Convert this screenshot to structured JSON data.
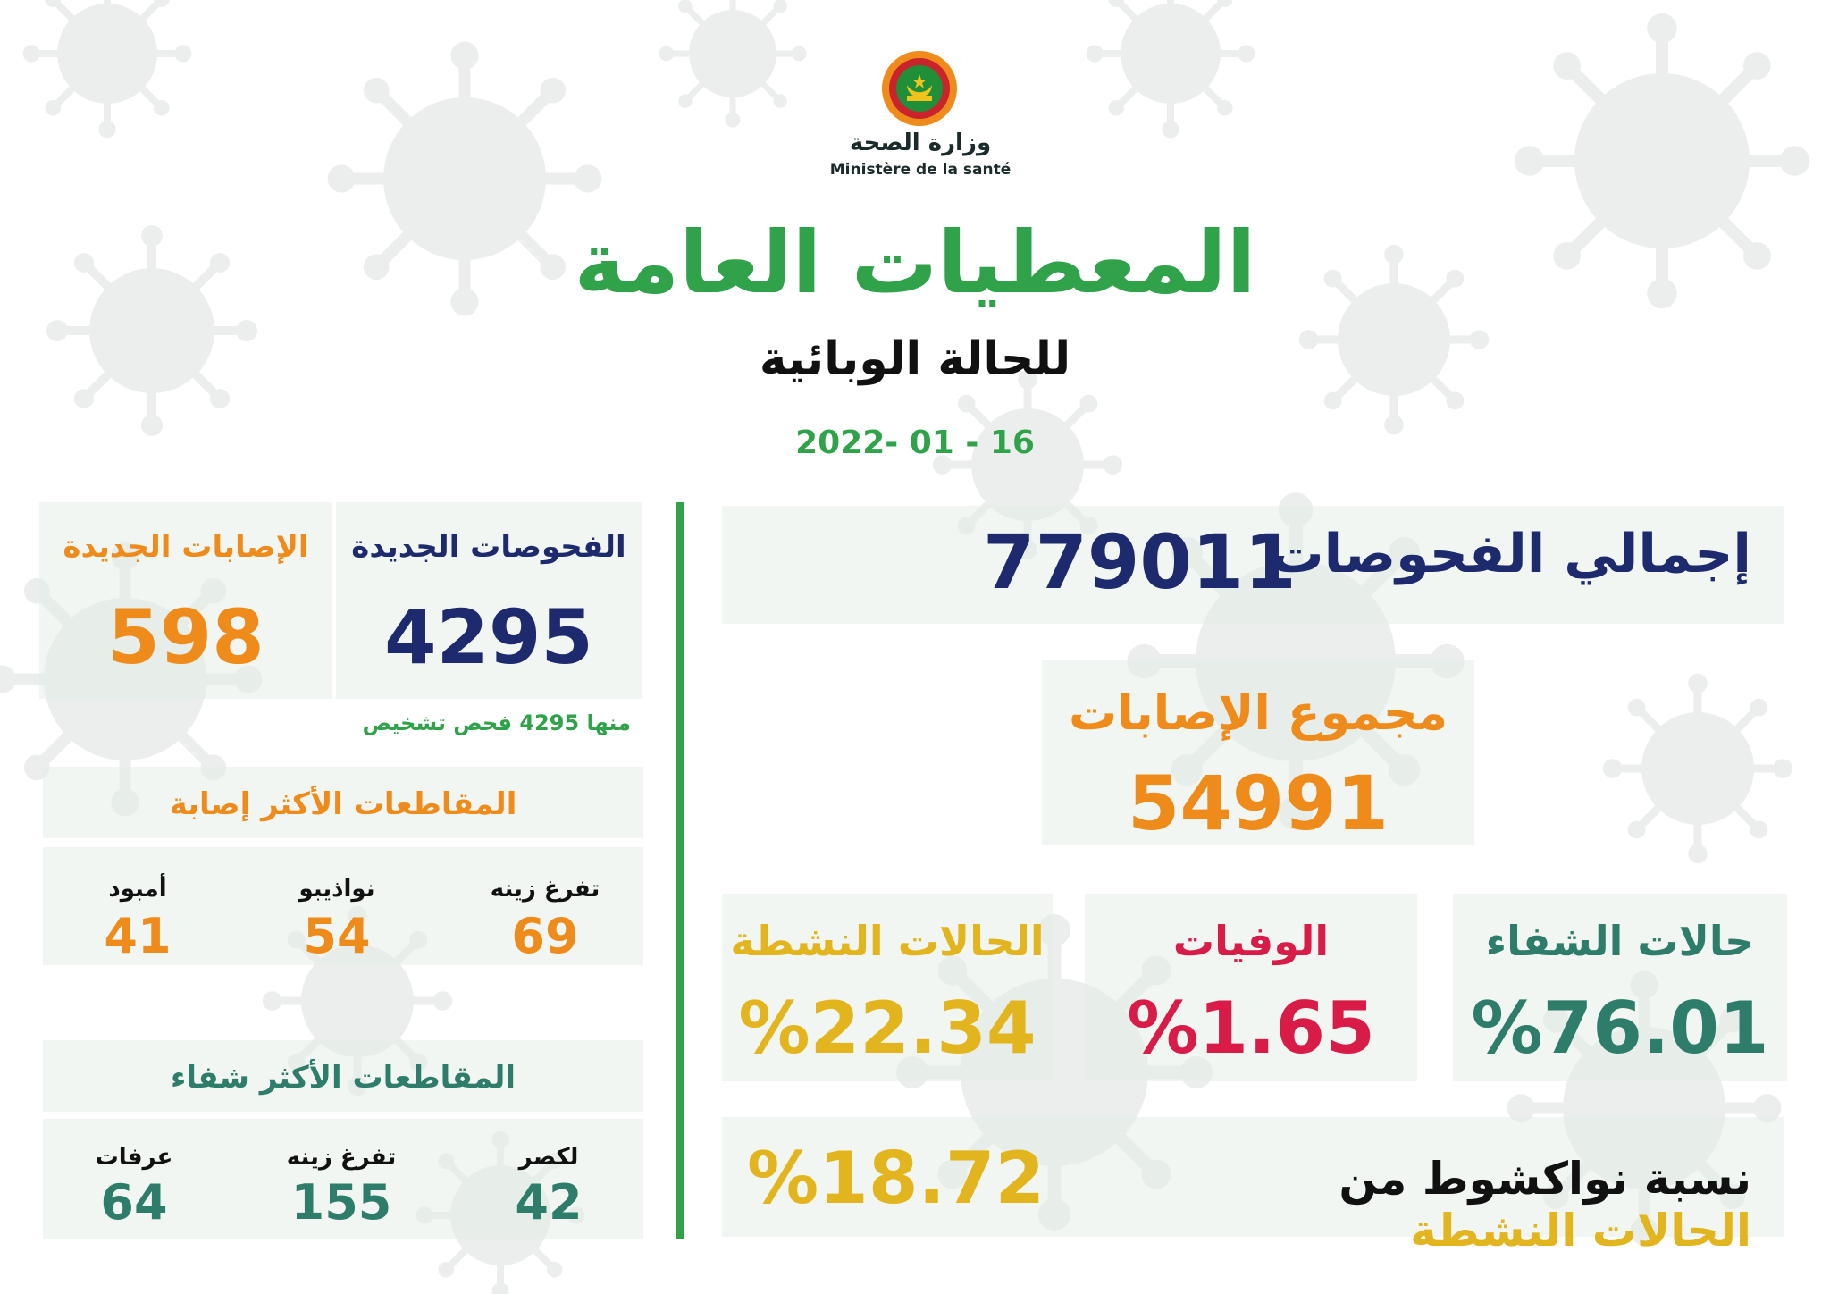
{
  "header": {
    "ministry_ar": "وزارة الصحة",
    "ministry_fr": "Ministère de la santé",
    "title": "المعطيات العامة",
    "subtitle": "للحالة الوبائية",
    "date": "2022- 01 - 16"
  },
  "totals": {
    "tests_label": "إجمالي الفحوصات",
    "tests_value": "779011",
    "cases_label": "مجموع الإصابات",
    "cases_value": "54991"
  },
  "rates": {
    "recovery_label": "حالات الشفاء",
    "recovery_value": "%76.01",
    "deaths_label": "الوفيات",
    "deaths_value": "%1.65",
    "active_label": "الحالات النشطة",
    "active_value": "%22.34"
  },
  "nouakchott": {
    "label_part1": "نسبة نواكشوط من",
    "label_part2": "الحالات النشطة",
    "value": "%18.72"
  },
  "daily": {
    "new_tests_label": "الفحوصات الجديدة",
    "new_tests_value": "4295",
    "new_cases_label": "الإصابات الجديدة",
    "new_cases_value": "598",
    "note": "منها 4295 فحص تشخيص"
  },
  "most_infected": {
    "heading": "المقاطعات الأكثر إصابة",
    "items": [
      {
        "name": "تفرغ زينه",
        "value": "69"
      },
      {
        "name": "نواذيبو",
        "value": "54"
      },
      {
        "name": "أمبود",
        "value": "41"
      }
    ]
  },
  "most_recovered": {
    "heading": "المقاطعات الأكثر شفاء",
    "items": [
      {
        "name": "لكصر",
        "value": "42"
      },
      {
        "name": "تفرغ زينه",
        "value": "155"
      },
      {
        "name": "عرفات",
        "value": "64"
      }
    ]
  },
  "colors": {
    "green": "#2fa24a",
    "navy": "#1d2a6e",
    "orange": "#ef8b1a",
    "teal": "#2e7d6b",
    "crimson": "#d81b47",
    "gold": "#e2b51e"
  }
}
